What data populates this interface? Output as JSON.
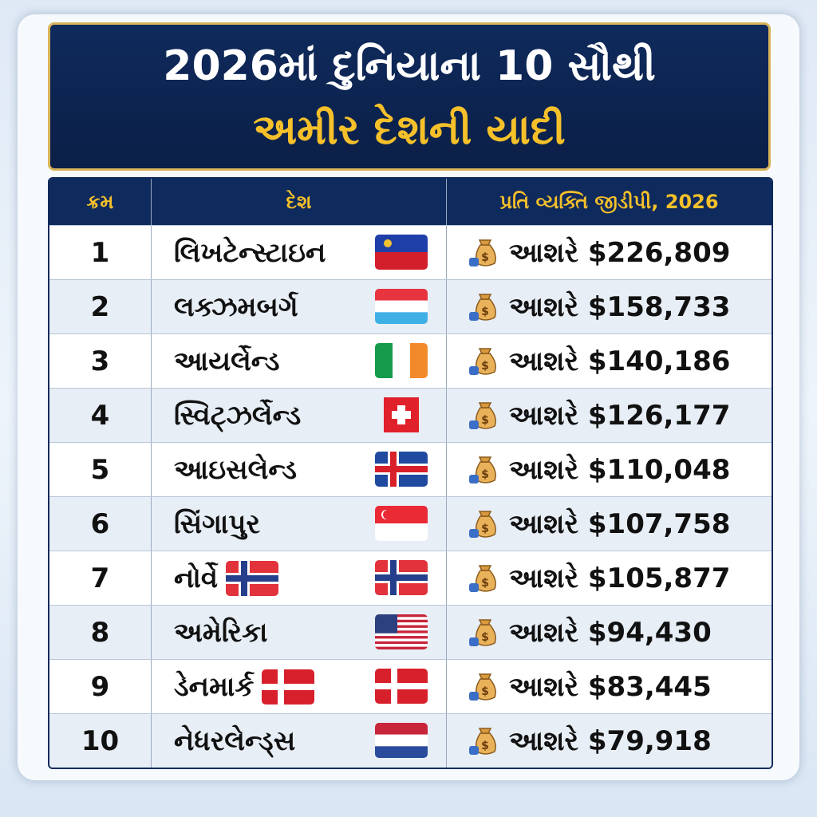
{
  "header": {
    "title": [
      "2026માં દુનિયાના 10 સૌથી",
      "અમીર દેશની યાદી"
    ]
  },
  "table": {
    "columns": [
      "ક્રમ",
      "દેશ",
      "પ્રતિ વ્યક્તિ જીડીપી, 2026"
    ],
    "rows": [
      [
        1,
        "લિખટેન્સ્ટાઇન",
        "આશરે $226,809"
      ],
      [
        2,
        "લક્ઝમબર્ગ",
        "આશરે $158,733"
      ],
      [
        3,
        "આયર્લેન્ડ",
        "આશરે $140,186"
      ],
      [
        4,
        "સ્વિટ્ઝર્લેન્ડ",
        "આશરે $126,177"
      ],
      [
        5,
        "આઇસલેન્ડ",
        "આશરે $110,048"
      ],
      [
        6,
        "સિંગાપુર",
        "આશરે $107,758"
      ],
      [
        7,
        "નોર્વે",
        "આશરે $105,877"
      ],
      [
        8,
        "અમેરિકા",
        "આશરે $94,430"
      ],
      [
        9,
        "ડેનમાર્ક",
        "આશરે $83,445"
      ],
      [
        10,
        "નેધરલેન્ડ્સ",
        "આશરે $79,918"
      ]
    ]
  }
}
